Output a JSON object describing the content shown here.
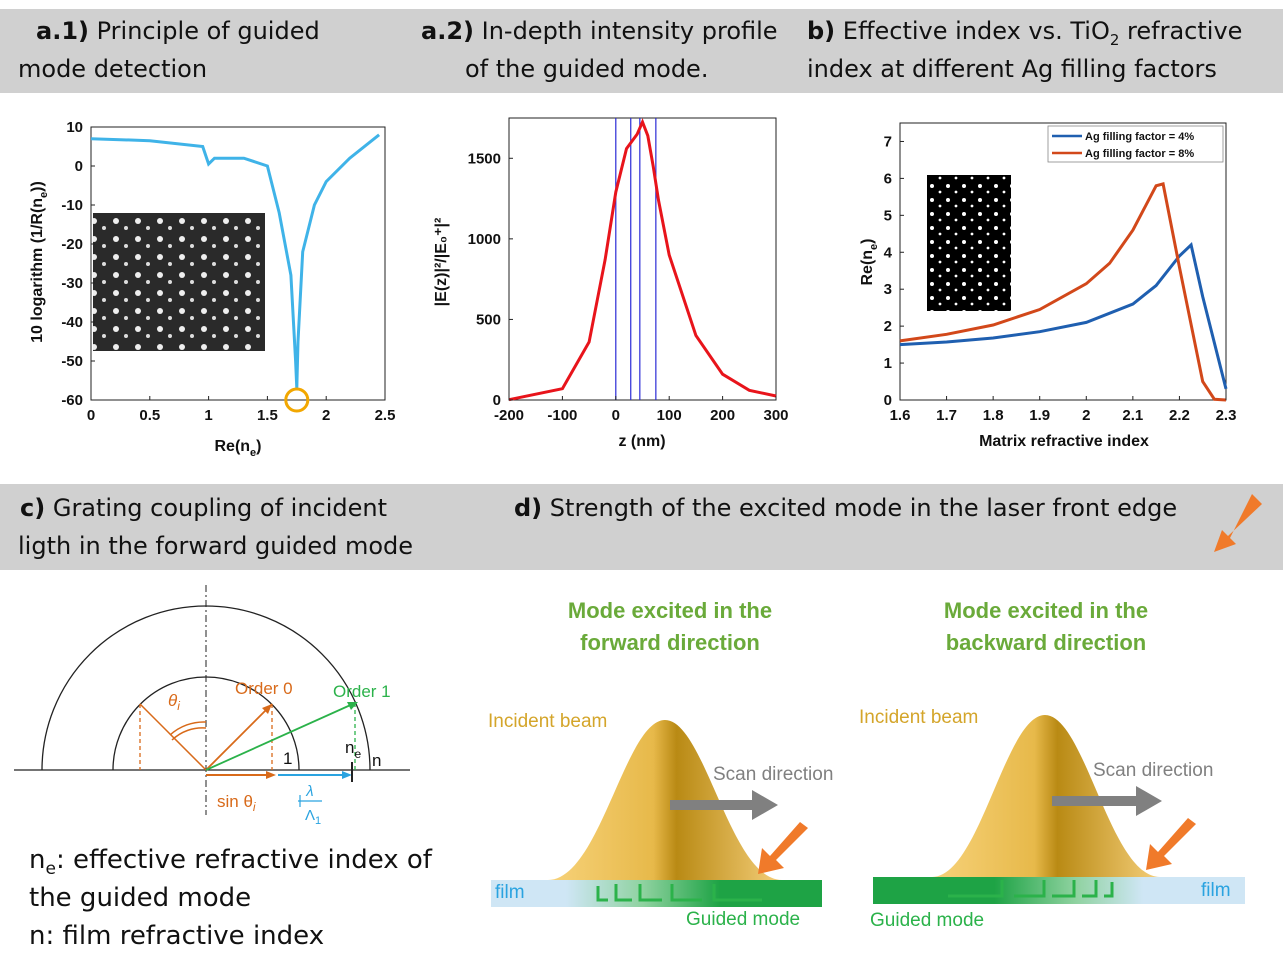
{
  "headers": {
    "a1": {
      "tag": "a.1)",
      "line1": "Principle of guided",
      "line2": "mode detection"
    },
    "a2": {
      "tag": "a.2)",
      "line1": "In-depth intensity profile",
      "line2": "of the guided mode."
    },
    "b": {
      "tag": "b)",
      "line1_pre": "Effective index vs. TiO",
      "line1_sub": "2",
      "line1_post": " refractive",
      "line2": "index at different Ag filling factors"
    },
    "c": {
      "tag": "c)",
      "line1": "Grating coupling of incident",
      "line2": "ligth in the forward guided mode"
    },
    "d": {
      "tag": "d)",
      "line1": "Strength of the excited mode in the laser front edge"
    }
  },
  "panel_a1": {
    "ylabel": "10 logarithm (1/R(n",
    "ylabel_sub": "e",
    "ylabel_end": "))",
    "xlabel": "Re(n",
    "xlabel_sub": "e",
    "xlabel_end": ")",
    "x_ticks": [
      "0",
      "0.5",
      "1",
      "1.5",
      "2",
      "2.5"
    ],
    "y_ticks": [
      "10",
      "0",
      "-10",
      "-20",
      "-30",
      "-40",
      "-50",
      "-60"
    ],
    "colors": {
      "curve": "#3fb3e8",
      "marker": "#f2a700"
    }
  },
  "panel_a2": {
    "ylabel": "|E(z)|²/|E₀⁺|²",
    "xlabel": "z (nm)",
    "x_ticks": [
      "-200",
      "-100",
      "0",
      "100",
      "200",
      "300"
    ],
    "y_ticks": [
      "0",
      "500",
      "1000",
      "1500"
    ],
    "colors": {
      "curve": "#e8141b",
      "lines": "#2b2bd6"
    }
  },
  "panel_b": {
    "ylabel": "Re(n",
    "ylabel_sub": "e",
    "ylabel_end": ")",
    "xlabel": "Matrix refractive index",
    "x_ticks": [
      "1.6",
      "1.7",
      "1.8",
      "1.9",
      "2",
      "2.1",
      "2.2",
      "2.3"
    ],
    "y_ticks": [
      "0",
      "1",
      "2",
      "3",
      "4",
      "5",
      "6",
      "7"
    ],
    "legend": [
      "Ag filling factor = 4%",
      "Ag filling factor = 8%"
    ],
    "colors": {
      "s1": "#1f5fb0",
      "s2": "#d2481a"
    }
  },
  "chart_data": [
    {
      "type": "line",
      "xlim": [
        0,
        2.5
      ],
      "ylim": [
        -60,
        10
      ],
      "series": [
        {
          "x": [
            0,
            0.5,
            0.95,
            1.0,
            1.05,
            1.3,
            1.5,
            1.6,
            1.7,
            1.74,
            1.75,
            1.76,
            1.8,
            1.9,
            2.0,
            2.2,
            2.45
          ],
          "values": [
            7,
            6.5,
            5,
            0.5,
            2,
            2,
            0,
            -12,
            -28,
            -50,
            -57,
            -45,
            -22,
            -10,
            -4,
            2,
            8
          ]
        }
      ]
    },
    {
      "type": "line",
      "xlim": [
        -200,
        300
      ],
      "ylim": [
        0,
        1750
      ],
      "series": [
        {
          "x": [
            -200,
            -100,
            -50,
            -20,
            0,
            20,
            40,
            50,
            60,
            70,
            80,
            100,
            150,
            200,
            250,
            300
          ],
          "values": [
            2,
            70,
            360,
            870,
            1290,
            1560,
            1650,
            1725,
            1640,
            1450,
            1240,
            900,
            400,
            160,
            60,
            25
          ]
        }
      ],
      "vlines": [
        0,
        28,
        45,
        75
      ]
    },
    {
      "type": "line",
      "xlim": [
        1.6,
        2.3
      ],
      "ylim": [
        0,
        7.5
      ],
      "series": [
        {
          "name": "Ag filling factor = 4%",
          "x": [
            1.6,
            1.7,
            1.8,
            1.9,
            2.0,
            2.1,
            2.15,
            2.2,
            2.225,
            2.25,
            2.3
          ],
          "values": [
            1.5,
            1.57,
            1.68,
            1.85,
            2.1,
            2.6,
            3.1,
            3.9,
            4.2,
            2.8,
            0.3
          ]
        },
        {
          "name": "Ag filling factor = 8%",
          "x": [
            1.6,
            1.7,
            1.8,
            1.9,
            2.0,
            2.05,
            2.1,
            2.15,
            2.165,
            2.2,
            2.25,
            2.275,
            2.3
          ],
          "values": [
            1.6,
            1.78,
            2.03,
            2.45,
            3.15,
            3.7,
            4.6,
            5.8,
            5.85,
            3.6,
            0.5,
            0.02,
            0.0
          ]
        }
      ]
    }
  ],
  "panel_c": {
    "order0": "Order 0",
    "order1": "Order 1",
    "one": "1",
    "ne_base": "n",
    "ne_sub": "e",
    "n": "n",
    "theta": "θ",
    "theta_sub": "i",
    "sin_label": "sin θ",
    "sin_sub": "i",
    "lambda": "λ",
    "Lambda": "Λ",
    "Lambda_sub": "1",
    "note1_a": "n",
    "note1_sub": "e",
    "note1_b": ": effective refractive index of",
    "note2": "the guided mode",
    "note3": "n: film refractive index",
    "colors": {
      "order0": "#d86a1a",
      "order1": "#2bb24a",
      "lambda": "#2aa3e0"
    }
  },
  "panel_d": {
    "left": {
      "title1": "Mode excited in the",
      "title2": "forward direction",
      "beam": "Incident beam",
      "scan": "Scan direction",
      "film": "film",
      "guided": "Guided mode"
    },
    "right": {
      "title1": "Mode excited in the",
      "title2": "backward direction",
      "beam": "Incident beam",
      "scan": "Scan direction",
      "film": "film",
      "guided": "Guided mode"
    },
    "colors": {
      "gold": "#d4a52a",
      "green_title": "#6aaa3a",
      "film": "#cfe6f5",
      "green_mode": "#1ea345",
      "arrow_orange": "#f07a2a",
      "arrow_grey": "#808080"
    }
  }
}
